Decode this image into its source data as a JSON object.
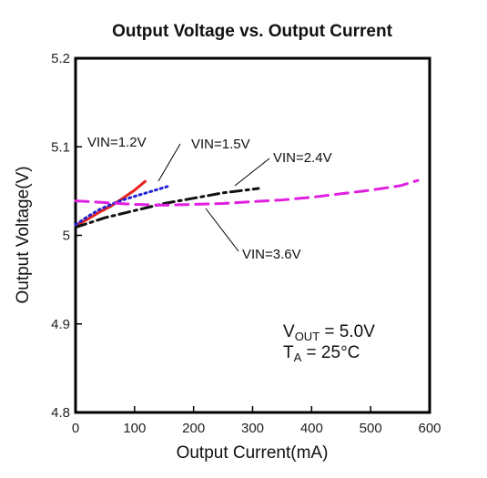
{
  "chart_data": {
    "type": "line",
    "title": "Output Voltage vs. Output Current",
    "xlabel": "Output Current(mA)",
    "ylabel": "Output Voltage(V)",
    "xlim": [
      0,
      600
    ],
    "ylim": [
      4.8,
      5.2
    ],
    "x_ticks": [
      "0",
      "100",
      "200",
      "300",
      "400",
      "500",
      "600"
    ],
    "y_ticks": [
      "4.8",
      "4.9",
      "5",
      "5.1",
      "5.2"
    ],
    "grid": false,
    "series": [
      {
        "name": "VIN=1.2V",
        "color": "#e8231c",
        "dash": "solid",
        "points": [
          [
            0,
            5.011
          ],
          [
            20,
            5.018
          ],
          [
            40,
            5.026
          ],
          [
            60,
            5.033
          ],
          [
            80,
            5.042
          ],
          [
            100,
            5.051
          ],
          [
            118,
            5.061
          ]
        ]
      },
      {
        "name": "VIN=1.5V",
        "color": "#2323d6",
        "dash": "dotted",
        "points": [
          [
            0,
            5.012
          ],
          [
            20,
            5.021
          ],
          [
            40,
            5.029
          ],
          [
            60,
            5.035
          ],
          [
            80,
            5.04
          ],
          [
            100,
            5.044
          ],
          [
            120,
            5.048
          ],
          [
            140,
            5.052
          ],
          [
            160,
            5.056
          ]
        ]
      },
      {
        "name": "VIN=2.4V",
        "color": "#111111",
        "dash": "dashdot",
        "points": [
          [
            0,
            5.009
          ],
          [
            50,
            5.02
          ],
          [
            100,
            5.028
          ],
          [
            150,
            5.036
          ],
          [
            200,
            5.042
          ],
          [
            250,
            5.048
          ],
          [
            310,
            5.053
          ]
        ]
      },
      {
        "name": "VIN=3.6V",
        "color": "#e020e0",
        "dash": "dashed",
        "points": [
          [
            0,
            5.039
          ],
          [
            50,
            5.037
          ],
          [
            100,
            5.035
          ],
          [
            150,
            5.034
          ],
          [
            200,
            5.035
          ],
          [
            250,
            5.036
          ],
          [
            300,
            5.038
          ],
          [
            350,
            5.04
          ],
          [
            400,
            5.043
          ],
          [
            450,
            5.047
          ],
          [
            500,
            5.051
          ],
          [
            550,
            5.056
          ],
          [
            580,
            5.062
          ]
        ]
      }
    ],
    "annotations": [
      {
        "name": "VIN=1.2V",
        "series": 0
      },
      {
        "name": "VIN=1.5V",
        "series": 1
      },
      {
        "name": "VIN=2.4V",
        "series": 2
      },
      {
        "name": "VIN=3.6V",
        "series": 3
      }
    ],
    "conditions": {
      "vout": {
        "main": "V",
        "sub": "OUT",
        "rest": " = 5.0V"
      },
      "ta": {
        "main": "T",
        "sub": "A",
        "rest": " = 25°C"
      }
    }
  }
}
